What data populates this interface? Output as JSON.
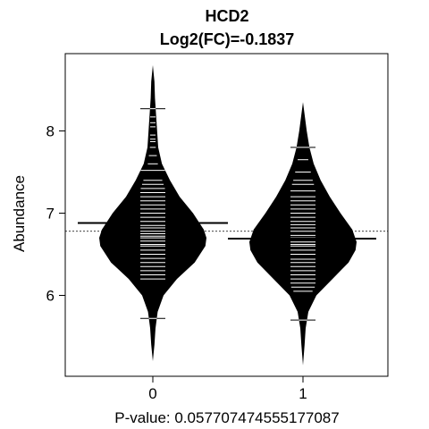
{
  "chart_data": {
    "type": "beanplot",
    "title": "HCD2",
    "subtitle": "Log2(FC)=-0.1837",
    "xlabel": "P-value: 0.057707474555177087",
    "ylabel": "Abundance",
    "categories": [
      "0",
      "1"
    ],
    "y_ticks": [
      6,
      7,
      8
    ],
    "ylim": [
      5.1,
      8.9
    ],
    "overall_mean": 6.78,
    "grid": false,
    "groups": [
      {
        "category": "0",
        "mean": 6.88,
        "min": 5.2,
        "max": 8.8,
        "density": [
          [
            5.2,
            0.0
          ],
          [
            5.4,
            0.03
          ],
          [
            5.6,
            0.05
          ],
          [
            5.8,
            0.09
          ],
          [
            6.0,
            0.2
          ],
          [
            6.2,
            0.45
          ],
          [
            6.4,
            0.78
          ],
          [
            6.6,
            0.98
          ],
          [
            6.7,
            1.0
          ],
          [
            6.8,
            0.95
          ],
          [
            7.0,
            0.75
          ],
          [
            7.2,
            0.5
          ],
          [
            7.4,
            0.32
          ],
          [
            7.6,
            0.17
          ],
          [
            7.8,
            0.1
          ],
          [
            8.0,
            0.08
          ],
          [
            8.2,
            0.06
          ],
          [
            8.4,
            0.04
          ],
          [
            8.6,
            0.03
          ],
          [
            8.8,
            0.0
          ]
        ],
        "points": [
          5.72,
          6.2,
          6.25,
          6.3,
          6.35,
          6.4,
          6.45,
          6.5,
          6.55,
          6.6,
          6.62,
          6.66,
          6.7,
          6.72,
          6.75,
          6.78,
          6.82,
          6.85,
          6.88,
          6.9,
          6.95,
          7.0,
          7.05,
          7.1,
          7.15,
          7.2,
          7.25,
          7.3,
          7.35,
          7.4,
          7.52,
          7.6,
          7.7,
          7.8,
          7.87,
          7.9,
          7.95,
          8.05,
          8.1,
          8.17,
          8.27
        ],
        "long_ticks": [
          5.72,
          6.72,
          7.52,
          8.27
        ]
      },
      {
        "category": "1",
        "mean": 6.69,
        "min": 5.15,
        "max": 8.35,
        "density": [
          [
            5.15,
            0.0
          ],
          [
            5.4,
            0.03
          ],
          [
            5.6,
            0.05
          ],
          [
            5.8,
            0.1
          ],
          [
            6.0,
            0.25
          ],
          [
            6.2,
            0.55
          ],
          [
            6.4,
            0.85
          ],
          [
            6.55,
            0.98
          ],
          [
            6.65,
            1.0
          ],
          [
            6.8,
            0.92
          ],
          [
            7.0,
            0.7
          ],
          [
            7.2,
            0.5
          ],
          [
            7.4,
            0.33
          ],
          [
            7.6,
            0.2
          ],
          [
            7.8,
            0.12
          ],
          [
            8.0,
            0.07
          ],
          [
            8.2,
            0.03
          ],
          [
            8.35,
            0.0
          ]
        ],
        "points": [
          5.7,
          6.05,
          6.1,
          6.15,
          6.2,
          6.25,
          6.3,
          6.35,
          6.4,
          6.44,
          6.5,
          6.55,
          6.6,
          6.62,
          6.65,
          6.7,
          6.73,
          6.78,
          6.82,
          6.86,
          6.9,
          6.95,
          7.0,
          7.05,
          7.1,
          7.15,
          7.2,
          7.27,
          7.35,
          7.4,
          7.5,
          7.65,
          7.8
        ],
        "long_ticks": [
          5.7,
          6.44,
          7.8
        ]
      }
    ]
  }
}
